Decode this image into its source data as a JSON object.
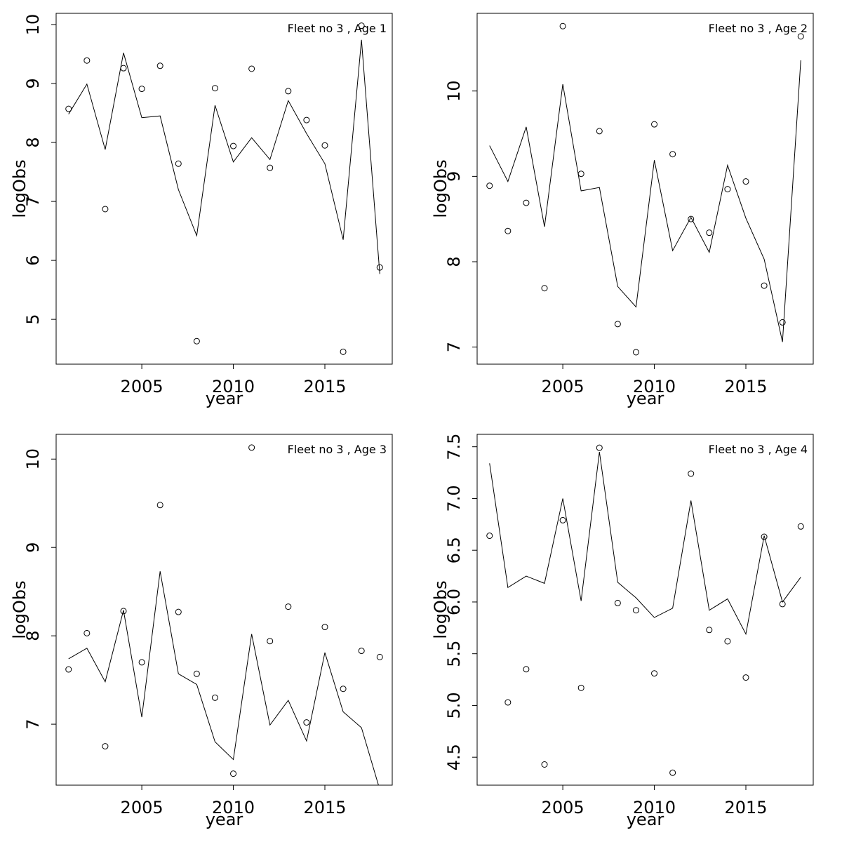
{
  "chart_data": [
    {
      "type": "line",
      "annotation": "Fleet no 3 , Age 1",
      "xlabel": "year",
      "ylabel": "logObs",
      "x": [
        2001,
        2002,
        2003,
        2004,
        2005,
        2006,
        2007,
        2008,
        2009,
        2010,
        2011,
        2012,
        2013,
        2014,
        2015,
        2016,
        2017,
        2018
      ],
      "xlim": [
        2000.32,
        2018.68
      ],
      "xticks": [
        2005,
        2010,
        2015
      ],
      "ylim": [
        4.24,
        10.19
      ],
      "yticks": [
        5,
        6,
        7,
        8,
        9,
        10
      ],
      "series": [
        {
          "mode": "points",
          "color": "#000000",
          "values": [
            8.57,
            9.39,
            6.87,
            9.26,
            8.91,
            9.3,
            7.64,
            4.63,
            8.92,
            7.94,
            9.25,
            7.57,
            8.87,
            8.38,
            7.95,
            4.45,
            9.98,
            5.88
          ]
        },
        {
          "mode": "line",
          "color": "#000000",
          "values": [
            8.48,
            8.99,
            7.88,
            9.52,
            8.42,
            8.45,
            7.2,
            6.42,
            8.63,
            7.67,
            8.08,
            7.71,
            8.71,
            8.15,
            7.64,
            6.35,
            9.74,
            5.77
          ]
        }
      ]
    },
    {
      "type": "line",
      "annotation": "Fleet no 3 , Age 2",
      "xlabel": "year",
      "ylabel": "logObs",
      "x": [
        2001,
        2002,
        2003,
        2004,
        2005,
        2006,
        2007,
        2008,
        2009,
        2010,
        2011,
        2012,
        2013,
        2014,
        2015,
        2016,
        2017,
        2018
      ],
      "xlim": [
        2000.32,
        2018.68
      ],
      "xticks": [
        2005,
        2010,
        2015
      ],
      "ylim": [
        6.8,
        10.91
      ],
      "yticks": [
        7,
        8,
        9,
        10
      ],
      "series": [
        {
          "mode": "points",
          "color": "#000000",
          "values": [
            8.89,
            8.36,
            8.69,
            7.69,
            10.76,
            9.03,
            9.53,
            7.27,
            6.94,
            9.61,
            9.26,
            8.5,
            8.34,
            8.85,
            8.94,
            7.72,
            7.29,
            10.64
          ]
        },
        {
          "mode": "line",
          "color": "#000000",
          "values": [
            9.36,
            8.94,
            9.58,
            8.41,
            10.08,
            8.83,
            8.87,
            7.71,
            7.47,
            9.19,
            8.13,
            8.52,
            8.11,
            9.13,
            8.51,
            8.03,
            7.06,
            10.36
          ]
        }
      ]
    },
    {
      "type": "line",
      "annotation": "Fleet no 3 , Age 3",
      "xlabel": "year",
      "ylabel": "logObs",
      "x": [
        2001,
        2002,
        2003,
        2004,
        2005,
        2006,
        2007,
        2008,
        2009,
        2010,
        2011,
        2012,
        2013,
        2014,
        2015,
        2016,
        2017,
        2018
      ],
      "xlim": [
        2000.32,
        2018.68
      ],
      "xticks": [
        2005,
        2010,
        2015
      ],
      "ylim": [
        6.31,
        10.28
      ],
      "yticks": [
        7,
        8,
        9,
        10
      ],
      "series": [
        {
          "mode": "points",
          "color": "#000000",
          "values": [
            7.62,
            8.03,
            6.75,
            8.28,
            7.7,
            9.48,
            8.27,
            7.57,
            7.3,
            6.44,
            10.13,
            7.94,
            8.33,
            7.02,
            8.1,
            7.4,
            7.83,
            7.76
          ]
        },
        {
          "mode": "line",
          "color": "#000000",
          "values": [
            7.74,
            7.86,
            7.48,
            8.29,
            7.08,
            8.73,
            7.57,
            7.45,
            6.8,
            6.6,
            8.02,
            6.99,
            7.27,
            6.81,
            7.81,
            7.14,
            6.96,
            6.26
          ]
        }
      ]
    },
    {
      "type": "line",
      "annotation": "Fleet no 3 , Age 4",
      "xlabel": "year",
      "ylabel": "logObs",
      "x": [
        2001,
        2002,
        2003,
        2004,
        2005,
        2006,
        2007,
        2008,
        2009,
        2010,
        2011,
        2012,
        2013,
        2014,
        2015,
        2016,
        2017,
        2018
      ],
      "xlim": [
        2000.32,
        2018.68
      ],
      "xticks": [
        2005,
        2010,
        2015
      ],
      "ylim": [
        4.23,
        7.62
      ],
      "yticks": [
        4.5,
        {
          "value": 5,
          "label": "5.0"
        },
        5.5,
        {
          "value": 6,
          "label": "6.0"
        },
        6.5,
        {
          "value": 7,
          "label": "7.0"
        },
        7.5
      ],
      "series": [
        {
          "mode": "points",
          "color": "#000000",
          "values": [
            6.64,
            5.03,
            5.35,
            4.43,
            6.79,
            5.17,
            7.49,
            5.99,
            5.92,
            5.31,
            4.35,
            7.24,
            5.73,
            5.62,
            5.27,
            6.63,
            5.98,
            6.73
          ]
        },
        {
          "mode": "line",
          "color": "#000000",
          "values": [
            7.34,
            6.14,
            6.25,
            6.18,
            7.0,
            6.01,
            7.45,
            6.19,
            6.04,
            5.85,
            5.94,
            6.98,
            5.92,
            6.03,
            5.69,
            6.64,
            6.0,
            6.24
          ]
        }
      ]
    }
  ]
}
